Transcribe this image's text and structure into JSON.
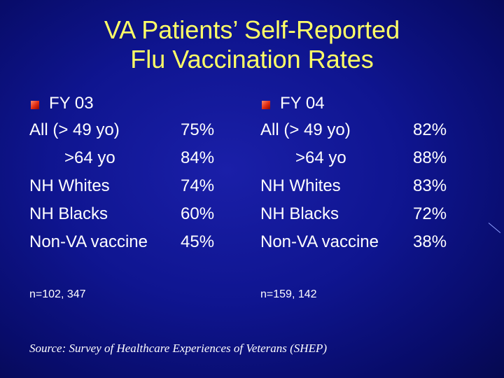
{
  "title": {
    "line1": "VA Patients’ Self-Reported",
    "line2": "Flu Vaccination Rates"
  },
  "colors": {
    "title": "#ffff66",
    "text": "#ffffff",
    "background": "#0f1590",
    "bullet": "#e02a10"
  },
  "columns": [
    {
      "heading": "FY 03",
      "rows": [
        {
          "label": "All (> 49 yo)",
          "value": "75%"
        },
        {
          "label": ">64 yo",
          "value": "84%"
        },
        {
          "label": "NH Whites",
          "value": "74%"
        },
        {
          "label": "NH Blacks",
          "value": "60%"
        },
        {
          "label": "Non-VA vaccine",
          "value": "45%"
        }
      ],
      "n": "n=102, 347"
    },
    {
      "heading": "FY 04",
      "rows": [
        {
          "label": "All (> 49 yo)",
          "value": "82%"
        },
        {
          "label": ">64 yo",
          "value": "88%"
        },
        {
          "label": "NH Whites",
          "value": "83%"
        },
        {
          "label": "NH Blacks",
          "value": "72%"
        },
        {
          "label": "Non-VA vaccine",
          "value": "38%"
        }
      ],
      "n": "n=159, 142"
    }
  ],
  "source": "Source: Survey of Healthcare Experiences of Veterans (SHEP)"
}
